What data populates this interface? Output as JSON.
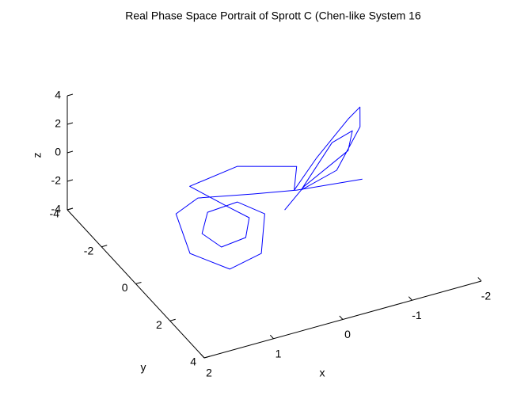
{
  "chart_data": {
    "type": "line3d",
    "title": "Real Phase Space Portrait of Sprott C (Chen-like System 16",
    "xlabel": "x",
    "ylabel": "y",
    "zlabel": "z",
    "xlim": [
      -2,
      2
    ],
    "ylim": [
      -4,
      4
    ],
    "zlim": [
      -4,
      4
    ],
    "xticks": [
      -2,
      -1,
      0,
      1,
      2
    ],
    "yticks": [
      -4,
      -2,
      0,
      2,
      4
    ],
    "zticks": [
      -4,
      -2,
      0,
      2,
      4
    ],
    "series": [
      {
        "color": "#0000ff",
        "x": [
          -1.11,
          -0.24,
          0.3,
          0.98,
          1.4,
          1.66,
          1.37,
          0.84,
          0.38,
          0.57,
          1.02,
          1.31,
          1.23,
          0.85,
          0.6,
          0.72,
          0.95,
          0.19,
          -0.49,
          -0.21,
          -0.8,
          -1.59,
          -1.85,
          -1.64,
          -0.91,
          -0.29,
          -1.15,
          -1.51,
          -1.25,
          -0.37,
          0.11
        ],
        "y": [
          0.65,
          0.34,
          -0.01,
          -0.5,
          -0.08,
          1.79,
          2.94,
          2.64,
          0.98,
          0.14,
          0.23,
          1.08,
          1.89,
          1.77,
          0.96,
          0.29,
          -1.1,
          -1.39,
          -0.68,
          0.31,
          -0.79,
          -2.11,
          -2.48,
          -1.63,
          -0.04,
          0.39,
          -1.28,
          -1.55,
          -0.75,
          0.26,
          1.05
        ],
        "z": [
          0,
          0,
          0,
          0,
          0,
          0,
          0,
          0,
          0,
          0,
          0,
          0,
          0,
          0,
          0,
          0,
          0,
          0,
          0,
          0,
          0,
          0,
          0,
          0,
          0,
          0,
          0,
          0,
          0,
          0,
          0
        ]
      }
    ]
  }
}
